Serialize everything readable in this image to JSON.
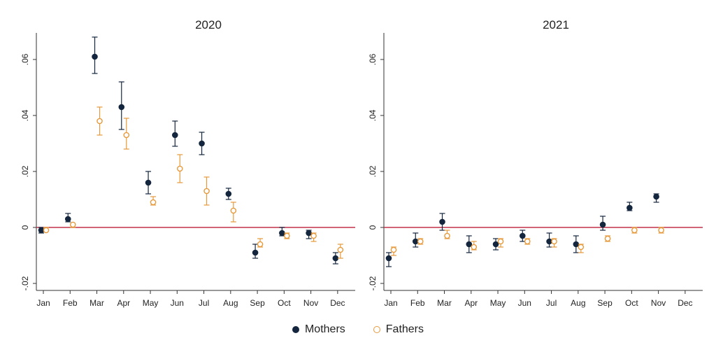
{
  "legend": {
    "items": [
      {
        "label": "Mothers",
        "color": "#14263d",
        "marker": "filled-circle"
      },
      {
        "label": "Fathers",
        "color": "#e69a3c",
        "marker": "hollow-circle"
      }
    ]
  },
  "colors": {
    "reference_line": "#c2304a",
    "axis": "#333333"
  },
  "chart_data": [
    {
      "type": "scatter",
      "title": "2020",
      "categories": [
        "Jan",
        "Feb",
        "Mar",
        "Apr",
        "May",
        "Jun",
        "Jul",
        "Aug",
        "Sep",
        "Oct",
        "Nov",
        "Dec"
      ],
      "yticks": [
        -0.02,
        0,
        0.02,
        0.04,
        0.06
      ],
      "ytick_labels": [
        "-.02",
        "0",
        ".02",
        ".04",
        ".06"
      ],
      "ylim": [
        -0.0225,
        0.0695
      ],
      "reference_line": 0,
      "series": [
        {
          "name": "Mothers",
          "values": [
            -0.001,
            0.003,
            0.061,
            0.043,
            0.016,
            0.033,
            0.03,
            0.012,
            -0.009,
            -0.002,
            -0.002,
            -0.011
          ],
          "ci_low": [
            -0.002,
            0.002,
            0.055,
            0.035,
            0.012,
            0.029,
            0.026,
            0.01,
            -0.011,
            -0.003,
            -0.004,
            -0.013
          ],
          "ci_high": [
            0.0,
            0.005,
            0.068,
            0.052,
            0.02,
            0.038,
            0.034,
            0.014,
            -0.006,
            0.0,
            -0.001,
            -0.009
          ]
        },
        {
          "name": "Fathers",
          "values": [
            -0.001,
            0.001,
            0.038,
            0.033,
            0.009,
            0.021,
            0.013,
            0.006,
            -0.006,
            -0.003,
            -0.003,
            -0.008
          ],
          "ci_low": [
            -0.001,
            0.0,
            0.033,
            0.028,
            0.008,
            0.016,
            0.008,
            0.002,
            -0.007,
            -0.004,
            -0.005,
            -0.011
          ],
          "ci_high": [
            0.0,
            0.001,
            0.043,
            0.039,
            0.011,
            0.026,
            0.018,
            0.009,
            -0.004,
            -0.002,
            -0.002,
            -0.006
          ]
        }
      ]
    },
    {
      "type": "scatter",
      "title": "2021",
      "categories": [
        "Jan",
        "Feb",
        "Mar",
        "Apr",
        "May",
        "Jun",
        "Jul",
        "Aug",
        "Sep",
        "Oct",
        "Nov",
        "Dec"
      ],
      "yticks": [
        -0.02,
        0,
        0.02,
        0.04,
        0.06
      ],
      "ytick_labels": [
        "-.02",
        "0",
        ".02",
        ".04",
        ".06"
      ],
      "ylim": [
        -0.0225,
        0.0695
      ],
      "reference_line": 0,
      "series": [
        {
          "name": "Mothers",
          "values": [
            -0.011,
            -0.005,
            0.002,
            -0.006,
            -0.006,
            -0.003,
            -0.005,
            -0.006,
            0.001,
            0.007,
            0.011,
            null
          ],
          "ci_low": [
            -0.014,
            -0.007,
            -0.001,
            -0.009,
            -0.008,
            -0.005,
            -0.007,
            -0.009,
            -0.001,
            0.006,
            0.009,
            null
          ],
          "ci_high": [
            -0.009,
            -0.002,
            0.005,
            -0.003,
            -0.004,
            -0.001,
            -0.002,
            -0.003,
            0.004,
            0.009,
            0.012,
            null
          ]
        },
        {
          "name": "Fathers",
          "values": [
            -0.008,
            -0.005,
            -0.003,
            -0.007,
            -0.005,
            -0.005,
            -0.005,
            -0.007,
            -0.004,
            -0.001,
            -0.001,
            null
          ],
          "ci_low": [
            -0.01,
            -0.006,
            -0.004,
            -0.008,
            -0.007,
            -0.006,
            -0.007,
            -0.009,
            -0.005,
            -0.002,
            -0.002,
            null
          ],
          "ci_high": [
            -0.007,
            -0.004,
            -0.001,
            -0.005,
            -0.004,
            -0.004,
            -0.004,
            -0.006,
            -0.003,
            0.0,
            0.0,
            null
          ]
        }
      ]
    }
  ]
}
